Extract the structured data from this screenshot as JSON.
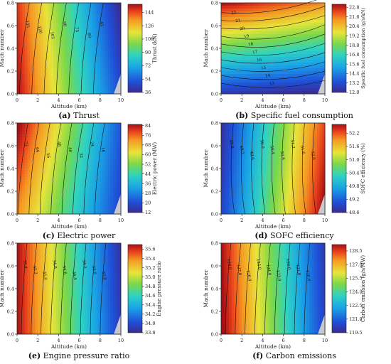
{
  "chart_data": [
    {
      "type": "heatmap",
      "caption_letter": "(a)",
      "caption_text": "Thrust",
      "xlabel": "Altitude (km)",
      "ylabel": "Mach number",
      "xlim": [
        0,
        10
      ],
      "ylim": [
        0,
        0.8
      ],
      "x_ticks": [
        "0",
        "2",
        "4",
        "6",
        "8",
        "10"
      ],
      "y_ticks": [
        "0.0",
        "0.2",
        "0.4",
        "0.6",
        "0.8"
      ],
      "colorbar_label": "Thrust (kN)",
      "colorbar_ticks": [
        "36",
        "54",
        "72",
        "90",
        "108",
        "126",
        "144"
      ],
      "vmin": 36,
      "vmax": 155,
      "contours": [
        {
          "label": "135",
          "x_at_top": 0.5
        },
        {
          "label": "120",
          "x_at_top": 1.2
        },
        {
          "label": "105",
          "x_at_top": 2.3
        },
        {
          "label": "90",
          "x_at_top": 3.9
        },
        {
          "label": "75",
          "x_at_top": 5.6
        },
        {
          "label": "60",
          "x_at_top": 7.4
        },
        {
          "label": "45",
          "x_at_top": 9.0
        }
      ]
    },
    {
      "type": "heatmap",
      "caption_letter": "(b)",
      "caption_text": "Specific fuel consumption",
      "xlabel": "Altitude (km)",
      "ylabel": "Mach number",
      "xlim": [
        0,
        10
      ],
      "ylim": [
        0,
        0.8
      ],
      "x_ticks": [
        "0",
        "2",
        "4",
        "6",
        "8",
        "10"
      ],
      "y_ticks": [
        "0.0",
        "0.2",
        "0.4",
        "0.6",
        "0.8"
      ],
      "colorbar_label": "Specific fuel consumption (g/s/kN)",
      "colorbar_ticks": [
        "12.0",
        "13.2",
        "14.4",
        "15.6",
        "16.8",
        "18.0",
        "19.2",
        "20.4",
        "21.6",
        "22.8"
      ],
      "vmin": 12.0,
      "vmax": 23.2,
      "contours": [
        {
          "label": "23"
        },
        {
          "label": "21"
        },
        {
          "label": "20"
        },
        {
          "label": "19"
        },
        {
          "label": "18"
        },
        {
          "label": "17"
        },
        {
          "label": "16"
        },
        {
          "label": "15"
        },
        {
          "label": "14"
        },
        {
          "label": "13"
        }
      ]
    },
    {
      "type": "heatmap",
      "caption_letter": "(c)",
      "caption_text": "Electric power",
      "xlabel": "Altitude (km)",
      "ylabel": "Mach number",
      "xlim": [
        0,
        10
      ],
      "ylim": [
        0,
        0.8
      ],
      "x_ticks": [
        "0",
        "2",
        "4",
        "6",
        "8",
        "10"
      ],
      "y_ticks": [
        "0.0",
        "0.2",
        "0.4",
        "0.6",
        "0.8"
      ],
      "colorbar_label": "Electric power (MW)",
      "colorbar_ticks": [
        "12",
        "20",
        "28",
        "36",
        "44",
        "52",
        "60",
        "68",
        "76",
        "84"
      ],
      "vmin": 12,
      "vmax": 85,
      "contours": [
        {
          "label": "72"
        },
        {
          "label": "64"
        },
        {
          "label": "56"
        },
        {
          "label": "48"
        },
        {
          "label": "40"
        },
        {
          "label": "32"
        },
        {
          "label": "24"
        },
        {
          "label": "16"
        }
      ]
    },
    {
      "type": "heatmap",
      "caption_letter": "(d)",
      "caption_text": "SOFC efficiency",
      "xlabel": "Altitude (km)",
      "ylabel": "Mach number",
      "xlim": [
        0,
        10
      ],
      "ylim": [
        0,
        0.8
      ],
      "x_ticks": [
        "0",
        "2",
        "4",
        "6",
        "8",
        "10"
      ],
      "y_ticks": [
        "0.0",
        "0.2",
        "0.4",
        "0.6",
        "0.8"
      ],
      "colorbar_label": "SOFC efficiency (%)",
      "colorbar_ticks": [
        "48.6",
        "49.2",
        "49.8",
        "50.4",
        "51.0",
        "51.6",
        "52.2"
      ],
      "vmin": 48.6,
      "vmax": 52.6,
      "contours": [
        {
          "label": "48.8"
        },
        {
          "label": "49.2"
        },
        {
          "label": "49.6"
        },
        {
          "label": "50.0"
        },
        {
          "label": "50.4"
        },
        {
          "label": "50.8"
        },
        {
          "label": "51.2"
        },
        {
          "label": "51.6"
        },
        {
          "label": "52.0"
        }
      ]
    },
    {
      "type": "heatmap",
      "caption_letter": "(e)",
      "caption_text": "Engine pressure ratio",
      "xlabel": "Altitude (km)",
      "ylabel": "Mach number",
      "xlim": [
        0,
        10
      ],
      "ylim": [
        0,
        0.8
      ],
      "x_ticks": [
        "0",
        "2",
        "4",
        "6",
        "8",
        "10"
      ],
      "y_ticks": [
        "0.0",
        "0.2",
        "0.4",
        "0.6",
        "0.8"
      ],
      "colorbar_label": "Engine pressure ratio",
      "colorbar_ticks": [
        "33.8",
        "34.0",
        "34.2",
        "34.4",
        "34.6",
        "34.8",
        "35.0",
        "35.2",
        "35.4",
        "35.6"
      ],
      "vmin": 33.8,
      "vmax": 35.7,
      "contours": [
        {
          "label": "35.4"
        },
        {
          "label": "35.2"
        },
        {
          "label": "35.0"
        },
        {
          "label": "34.8"
        },
        {
          "label": "34.6"
        },
        {
          "label": "34.4"
        },
        {
          "label": "34.2"
        },
        {
          "label": "34.0"
        },
        {
          "label": "33.8"
        }
      ]
    },
    {
      "type": "heatmap",
      "caption_letter": "(f)",
      "caption_text": "Carbon emissions",
      "xlabel": "Altitude (km)",
      "ylabel": "Mach number",
      "xlim": [
        0,
        10
      ],
      "ylim": [
        0,
        0.8
      ],
      "x_ticks": [
        "0",
        "2",
        "4",
        "6",
        "8",
        "10"
      ],
      "y_ticks": [
        "0.0",
        "0.2",
        "0.4",
        "0.6",
        "0.8"
      ],
      "colorbar_label": "Carbon emission (g/s/MW)",
      "colorbar_ticks": [
        "119.5",
        "121.0",
        "122.5",
        "124.0",
        "125.5",
        "127.0",
        "128.5"
      ],
      "vmin": 119.5,
      "vmax": 129.2,
      "contours": [
        {
          "label": "128.0"
        },
        {
          "label": "127.0"
        },
        {
          "label": "126.0"
        },
        {
          "label": "125.0"
        },
        {
          "label": "124.0"
        },
        {
          "label": "123.0"
        },
        {
          "label": "122.0"
        },
        {
          "label": "121.0"
        },
        {
          "label": "120.0"
        }
      ]
    }
  ]
}
